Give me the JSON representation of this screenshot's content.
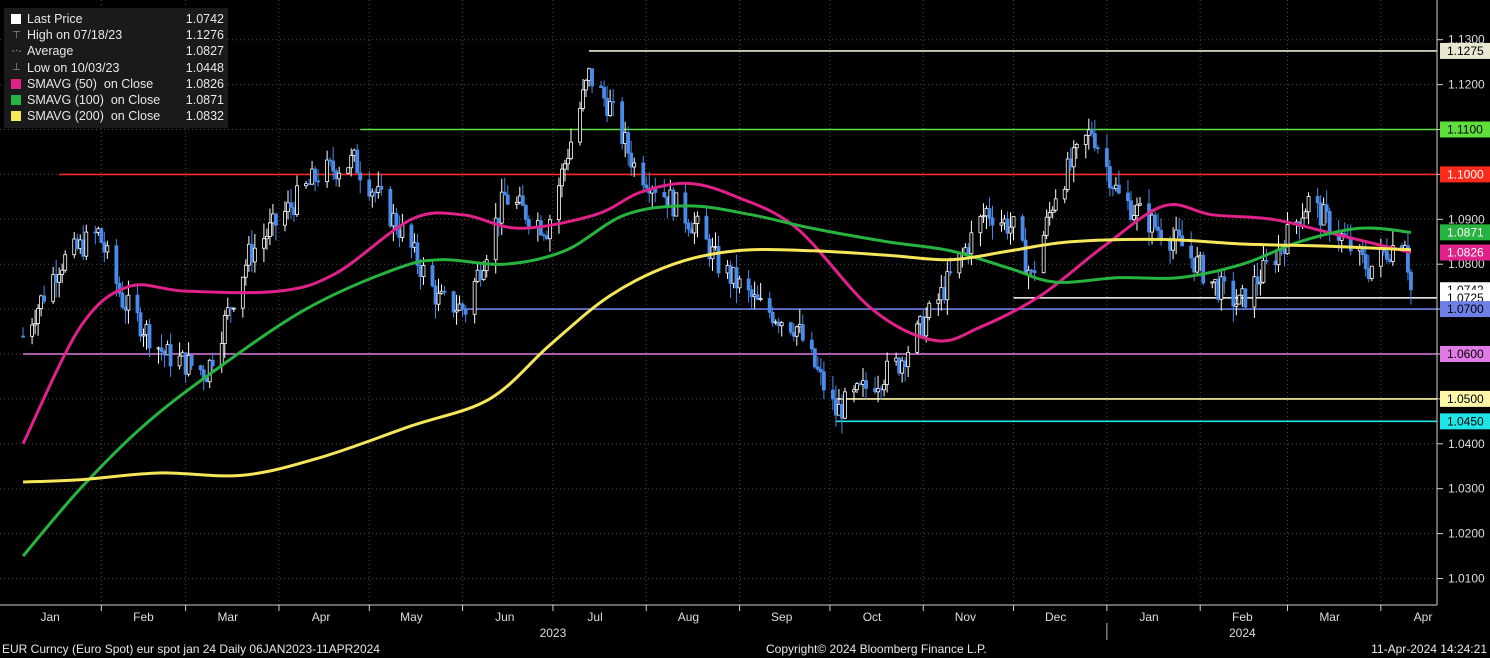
{
  "legend": [
    {
      "name": "Last Price",
      "value": "1.0742",
      "symbol": "box",
      "color": "#ffffff"
    },
    {
      "name": "High on 07/18/23",
      "value": "1.1276",
      "symbol": "high-marker",
      "color": "#999999"
    },
    {
      "name": "Average",
      "value": "1.0827",
      "symbol": "average-marker",
      "color": "#999999"
    },
    {
      "name": "Low on 10/03/23",
      "value": "1.0448",
      "symbol": "low-marker",
      "color": "#999999"
    },
    {
      "name": "SMAVG (50)  on Close",
      "value": "1.0826",
      "symbol": "box",
      "color": "#e0218a"
    },
    {
      "name": "SMAVG (100)  on Close",
      "value": "1.0871",
      "symbol": "box",
      "color": "#27b33f"
    },
    {
      "name": "SMAVG (200)  on Close",
      "value": "1.0832",
      "symbol": "box",
      "color": "#f5e65a"
    }
  ],
  "footer": {
    "left": "EUR Curncy (Euro Spot) eur spot jan 24  Daily 06JAN2023-11APR2024",
    "center": "Copyright© 2024 Bloomberg Finance L.P.",
    "right": "11-Apr-2024 14:24:21"
  },
  "chart_data": {
    "type": "line",
    "ylim": [
      1.005,
      1.134
    ],
    "y_ticks": [
      "1.0100",
      "1.0200",
      "1.0300",
      "1.0400",
      "1.0500",
      "1.0600",
      "1.0700",
      "1.0800",
      "1.0900",
      "1.1000",
      "1.1100",
      "1.1200",
      "1.1300"
    ],
    "x_months": [
      {
        "label": "Jan",
        "date": "2023-01-15"
      },
      {
        "label": "Feb",
        "date": "2023-02-15"
      },
      {
        "label": "Mar",
        "date": "2023-03-15"
      },
      {
        "label": "Apr",
        "date": "2023-04-15"
      },
      {
        "label": "May",
        "date": "2023-05-15"
      },
      {
        "label": "Jun",
        "date": "2023-06-15"
      },
      {
        "label": "Jul",
        "date": "2023-07-15"
      },
      {
        "label": "Aug",
        "date": "2023-08-15"
      },
      {
        "label": "Sep",
        "date": "2023-09-15"
      },
      {
        "label": "Oct",
        "date": "2023-10-15"
      },
      {
        "label": "Nov",
        "date": "2023-11-15"
      },
      {
        "label": "Dec",
        "date": "2023-12-15"
      },
      {
        "label": "Jan",
        "date": "2024-01-15"
      },
      {
        "label": "Feb",
        "date": "2024-02-15"
      },
      {
        "label": "Mar",
        "date": "2024-03-15"
      },
      {
        "label": "Apr",
        "date": "2024-04-15"
      }
    ],
    "x_years": [
      {
        "label": "2023",
        "date": "2023-07-01"
      },
      {
        "label": "2024",
        "date": "2024-02-15"
      }
    ],
    "date_range": [
      "2023-01-06",
      "2024-04-11"
    ],
    "price_path": [
      [
        "2023-01-06",
        1.064
      ],
      [
        "2023-01-18",
        1.08
      ],
      [
        "2023-01-31",
        1.087
      ],
      [
        "2023-02-08",
        1.072
      ],
      [
        "2023-02-22",
        1.06
      ],
      [
        "2023-03-08",
        1.056
      ],
      [
        "2023-03-22",
        1.082
      ],
      [
        "2023-04-14",
        1.1
      ],
      [
        "2023-04-26",
        1.103
      ],
      [
        "2023-05-12",
        1.087
      ],
      [
        "2023-05-24",
        1.072
      ],
      [
        "2023-06-02",
        1.07
      ],
      [
        "2023-06-15",
        1.095
      ],
      [
        "2023-06-29",
        1.088
      ],
      [
        "2023-07-13",
        1.122
      ],
      [
        "2023-07-20",
        1.115
      ],
      [
        "2023-07-28",
        1.102
      ],
      [
        "2023-08-08",
        1.095
      ],
      [
        "2023-08-18",
        1.088
      ],
      [
        "2023-08-25",
        1.08
      ],
      [
        "2023-09-07",
        1.071
      ],
      [
        "2023-09-20",
        1.066
      ],
      [
        "2023-10-03",
        1.047
      ],
      [
        "2023-10-12",
        1.052
      ],
      [
        "2023-10-24",
        1.058
      ],
      [
        "2023-11-06",
        1.072
      ],
      [
        "2023-11-22",
        1.092
      ],
      [
        "2023-12-01",
        1.088
      ],
      [
        "2023-12-07",
        1.077
      ],
      [
        "2023-12-15",
        1.096
      ],
      [
        "2023-12-27",
        1.11
      ],
      [
        "2024-01-05",
        1.095
      ],
      [
        "2024-01-16",
        1.089
      ],
      [
        "2024-01-26",
        1.084
      ],
      [
        "2024-02-05",
        1.076
      ],
      [
        "2024-02-14",
        1.071
      ],
      [
        "2024-02-26",
        1.082
      ],
      [
        "2024-03-08",
        1.094
      ],
      [
        "2024-03-19",
        1.086
      ],
      [
        "2024-03-28",
        1.079
      ],
      [
        "2024-04-03",
        1.083
      ],
      [
        "2024-04-09",
        1.086
      ],
      [
        "2024-04-11",
        1.0742
      ]
    ],
    "series": [
      {
        "name": "SMAVG (50)  on Close",
        "color": "#e0218a",
        "points": [
          [
            "2023-01-06",
            1.04
          ],
          [
            "2023-01-25",
            1.066
          ],
          [
            "2023-02-10",
            1.075
          ],
          [
            "2023-03-01",
            1.074
          ],
          [
            "2023-04-01",
            1.074
          ],
          [
            "2023-04-20",
            1.078
          ],
          [
            "2023-05-15",
            1.09
          ],
          [
            "2023-06-01",
            1.091
          ],
          [
            "2023-06-20",
            1.088
          ],
          [
            "2023-07-15",
            1.091
          ],
          [
            "2023-07-30",
            1.096
          ],
          [
            "2023-08-15",
            1.098
          ],
          [
            "2023-08-31",
            1.095
          ],
          [
            "2023-09-20",
            1.088
          ],
          [
            "2023-10-15",
            1.07
          ],
          [
            "2023-11-05",
            1.063
          ],
          [
            "2023-11-20",
            1.066
          ],
          [
            "2023-12-10",
            1.073
          ],
          [
            "2023-12-31",
            1.084
          ],
          [
            "2024-01-20",
            1.093
          ],
          [
            "2024-02-05",
            1.091
          ],
          [
            "2024-02-25",
            1.09
          ],
          [
            "2024-03-15",
            1.087
          ],
          [
            "2024-04-11",
            1.0826
          ]
        ]
      },
      {
        "name": "SMAVG (100)  on Close",
        "color": "#27b33f",
        "points": [
          [
            "2023-01-06",
            1.015
          ],
          [
            "2023-01-25",
            1.03
          ],
          [
            "2023-02-15",
            1.044
          ],
          [
            "2023-03-10",
            1.056
          ],
          [
            "2023-04-10",
            1.07
          ],
          [
            "2023-05-10",
            1.079
          ],
          [
            "2023-05-25",
            1.081
          ],
          [
            "2023-06-15",
            1.08
          ],
          [
            "2023-07-05",
            1.083
          ],
          [
            "2023-07-25",
            1.091
          ],
          [
            "2023-08-15",
            1.093
          ],
          [
            "2023-09-05",
            1.091
          ],
          [
            "2023-09-25",
            1.088
          ],
          [
            "2023-10-20",
            1.085
          ],
          [
            "2023-11-10",
            1.083
          ],
          [
            "2023-11-30",
            1.079
          ],
          [
            "2023-12-15",
            1.076
          ],
          [
            "2024-01-05",
            1.077
          ],
          [
            "2024-01-25",
            1.077
          ],
          [
            "2024-02-15",
            1.08
          ],
          [
            "2024-03-05",
            1.085
          ],
          [
            "2024-03-25",
            1.088
          ],
          [
            "2024-04-11",
            1.0871
          ]
        ]
      },
      {
        "name": "SMAVG (200)  on Close",
        "color": "#f5e65a",
        "points": [
          [
            "2023-01-06",
            1.0315
          ],
          [
            "2023-01-25",
            1.032
          ],
          [
            "2023-02-20",
            1.0335
          ],
          [
            "2023-03-20",
            1.033
          ],
          [
            "2023-04-15",
            1.037
          ],
          [
            "2023-05-15",
            1.044
          ],
          [
            "2023-06-10",
            1.05
          ],
          [
            "2023-06-30",
            1.062
          ],
          [
            "2023-07-20",
            1.073
          ],
          [
            "2023-08-10",
            1.08
          ],
          [
            "2023-08-31",
            1.083
          ],
          [
            "2023-09-25",
            1.083
          ],
          [
            "2023-10-20",
            1.082
          ],
          [
            "2023-11-10",
            1.081
          ],
          [
            "2023-11-30",
            1.083
          ],
          [
            "2023-12-20",
            1.085
          ],
          [
            "2024-01-20",
            1.0855
          ],
          [
            "2024-02-15",
            1.0845
          ],
          [
            "2024-03-15",
            1.084
          ],
          [
            "2024-04-11",
            1.0832
          ]
        ]
      }
    ],
    "levels": [
      {
        "label": "1.1275",
        "value": 1.1275,
        "start": "2023-07-13",
        "color": "#e8e8d0",
        "text_color": "#000000"
      },
      {
        "label": "1.1100",
        "value": 1.11,
        "start": "2023-04-28",
        "color": "#5ee03c",
        "text_color": "#000000"
      },
      {
        "label": "1.1000",
        "value": 1.1,
        "start": "2023-01-18",
        "color": "#ff2a1a",
        "text_color": "#ffffff"
      },
      {
        "label": "1.0725",
        "value": 1.0725,
        "start": "2023-12-01",
        "color": "#ffffff",
        "text_color": "#000000"
      },
      {
        "label": "1.0700",
        "value": 1.07,
        "start": "2023-05-31",
        "color": "#6e7fe6",
        "text_color": "#000000"
      },
      {
        "label": "1.0600",
        "value": 1.06,
        "start": "2023-01-06",
        "color": "#e07ae6",
        "text_color": "#000000"
      },
      {
        "label": "1.0500",
        "value": 1.05,
        "start": "2023-10-03",
        "color": "#fff7a8",
        "text_color": "#000000"
      },
      {
        "label": "1.0450",
        "value": 1.045,
        "start": "2023-10-03",
        "color": "#1ee6e6",
        "text_color": "#000000"
      }
    ],
    "right_tags": [
      {
        "label": "1.0871",
        "value": 1.0871,
        "color": "#27b33f",
        "text_color": "#ffffff"
      },
      {
        "label": "1.0826",
        "value": 1.0826,
        "color": "#e0218a",
        "text_color": "#ffffff"
      },
      {
        "label": "1.0742",
        "value": 1.0742,
        "color": "#ffffff",
        "text_color": "#000000"
      }
    ],
    "grid": true,
    "legend_position": "top-left"
  }
}
